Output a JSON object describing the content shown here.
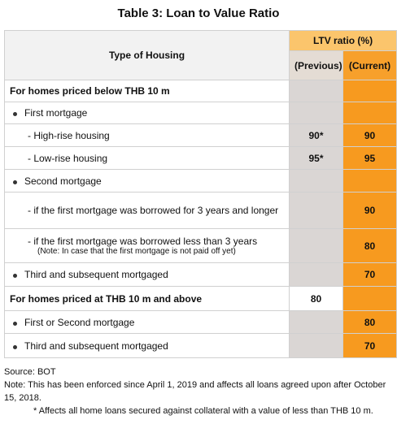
{
  "title": "Table 3: Loan to Value Ratio",
  "table": {
    "header": {
      "type": "Type of Housing",
      "ltv": "LTV ratio (%)",
      "previous": "(Previous)",
      "current": "(Current)"
    },
    "rows": [
      {
        "label": "For homes priced below THB 10 m"
      },
      {
        "label": "First mortgage"
      },
      {
        "label": "- High-rise housing",
        "previous": "90*",
        "current": 90
      },
      {
        "label": "- Low-rise housing",
        "previous": "95*",
        "current": 95
      },
      {
        "label": "Second mortgage"
      },
      {
        "label": "- if the first mortgage was borrowed for 3 years and longer",
        "current": 90
      },
      {
        "label": "- if the first mortgage was borrowed less than 3 years",
        "note": "(Note: In case that the first mortgage is not paid off yet)",
        "current": 80
      },
      {
        "label": "Third and subsequent mortgaged",
        "current": 70
      },
      {
        "label": "For homes priced at THB 10 m and above",
        "previous": 80
      },
      {
        "label": "First or Second mortgage",
        "current": 80
      },
      {
        "label": "Third and subsequent mortgaged",
        "current": 70
      }
    ]
  },
  "footer": {
    "source": "Source: BOT",
    "note": "Note: This has been enforced since April 1, 2019 and affects all loans agreed upon after October 15, 2018.",
    "asterisk": "* Affects all home loans secured against collateral with a value of less than THB 10 m."
  }
}
